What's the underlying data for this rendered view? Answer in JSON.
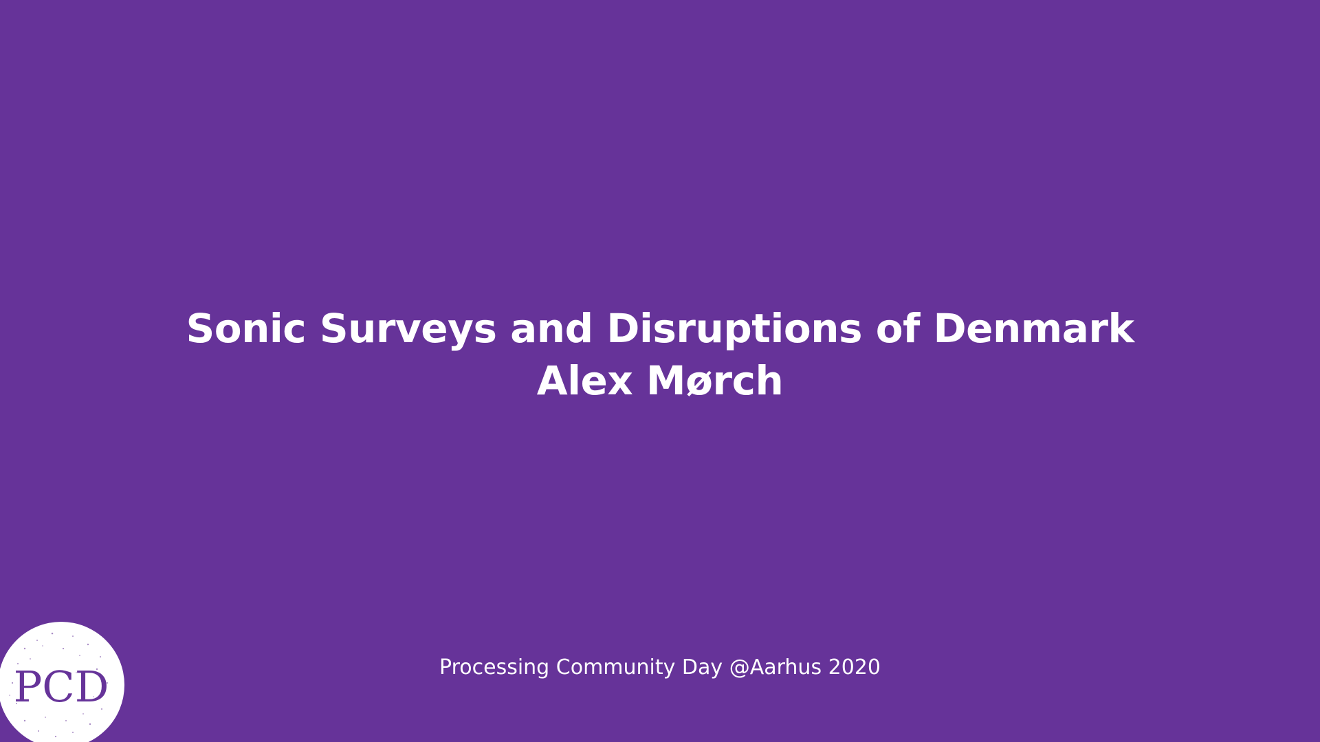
{
  "slide": {
    "background_color": "#663399",
    "text_color": "#ffffff",
    "title": "Sonic Surveys and Disruptions of Denmark",
    "author": "Alex Mørch",
    "footer": "Processing Community Day @Aarhus 2020"
  },
  "logo": {
    "icon": "pcd-logo-icon",
    "text": "PCD"
  }
}
